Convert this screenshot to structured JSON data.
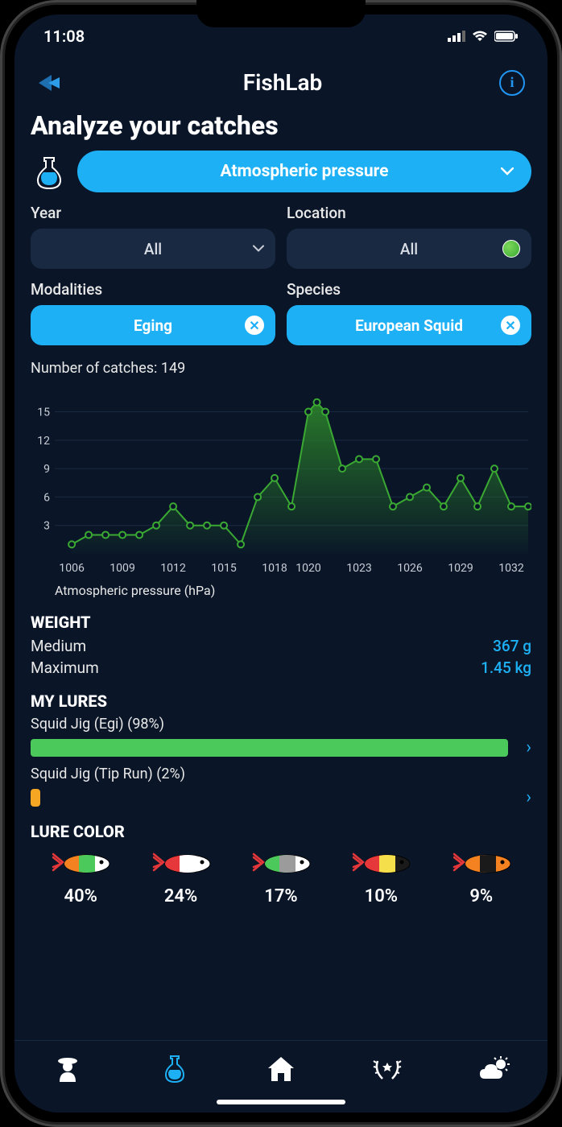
{
  "status": {
    "time": "11:08"
  },
  "header": {
    "title": "FishLab"
  },
  "page": {
    "title": "Analyze your catches"
  },
  "mainFilter": {
    "label": "Atmospheric pressure"
  },
  "filters": {
    "year": {
      "label": "Year",
      "value": "All"
    },
    "location": {
      "label": "Location",
      "value": "All"
    },
    "modalities": {
      "label": "Modalities",
      "value": "Eging"
    },
    "species": {
      "label": "Species",
      "value": "European Squid"
    }
  },
  "chart": {
    "type": "area-line",
    "titlePrefix": "Number of catches: ",
    "catchCount": "149",
    "xAxisLabel": "Atmospheric pressure (hPa)",
    "lineColor": "#3aa832",
    "markerColor": "#3aa832",
    "markerFill": "#0a1628",
    "fillTop": "#2d8a2a",
    "fillBottom": "rgba(45,138,42,0.05)",
    "gridColor": "#1a2942",
    "textColor": "#c8cdd6",
    "yTicks": [
      3,
      6,
      9,
      12,
      15
    ],
    "yMax": 17,
    "xTicks": [
      1006,
      1009,
      1012,
      1015,
      1018,
      1020,
      1023,
      1026,
      1029,
      1032
    ],
    "xMin": 1005,
    "xMax": 1033,
    "data": [
      {
        "x": 1006,
        "y": 1
      },
      {
        "x": 1007,
        "y": 2
      },
      {
        "x": 1008,
        "y": 2
      },
      {
        "x": 1009,
        "y": 2
      },
      {
        "x": 1010,
        "y": 2
      },
      {
        "x": 1011,
        "y": 3
      },
      {
        "x": 1012,
        "y": 5
      },
      {
        "x": 1013,
        "y": 3
      },
      {
        "x": 1014,
        "y": 3
      },
      {
        "x": 1015,
        "y": 3
      },
      {
        "x": 1016,
        "y": 1
      },
      {
        "x": 1017,
        "y": 6
      },
      {
        "x": 1018,
        "y": 8
      },
      {
        "x": 1019,
        "y": 5
      },
      {
        "x": 1020,
        "y": 15
      },
      {
        "x": 1020.5,
        "y": 16
      },
      {
        "x": 1021,
        "y": 15
      },
      {
        "x": 1022,
        "y": 9
      },
      {
        "x": 1023,
        "y": 10
      },
      {
        "x": 1024,
        "y": 10
      },
      {
        "x": 1025,
        "y": 5
      },
      {
        "x": 1026,
        "y": 6
      },
      {
        "x": 1027,
        "y": 7
      },
      {
        "x": 1028,
        "y": 5
      },
      {
        "x": 1029,
        "y": 8
      },
      {
        "x": 1030,
        "y": 5
      },
      {
        "x": 1031,
        "y": 9
      },
      {
        "x": 1032,
        "y": 5
      },
      {
        "x": 1033,
        "y": 5
      }
    ]
  },
  "weight": {
    "heading": "WEIGHT",
    "medium": {
      "label": "Medium",
      "value": "367 g"
    },
    "maximum": {
      "label": "Maximum",
      "value": "1.45 kg"
    }
  },
  "lures": {
    "heading": "MY LURES",
    "items": [
      {
        "label": "Squid Jig (Egi) (98%)",
        "pct": 98,
        "color": "#4bc95a"
      },
      {
        "label": "Squid Jig (Tip Run) (2%)",
        "pct": 2,
        "color": "#f5a623"
      }
    ]
  },
  "lureColor": {
    "heading": "LURE COLOR",
    "items": [
      {
        "pct": "40%",
        "segments": [
          "#f58220",
          "#4bc95a",
          "#ffffff"
        ]
      },
      {
        "pct": "24%",
        "segments": [
          "#e6373a",
          "#ffffff",
          "#ffffff"
        ]
      },
      {
        "pct": "17%",
        "segments": [
          "#4bc95a",
          "#9b9b9b",
          "#ffffff"
        ]
      },
      {
        "pct": "10%",
        "segments": [
          "#e6373a",
          "#f5e04b",
          "#1a1a1a"
        ]
      },
      {
        "pct": "9%",
        "segments": [
          "#f58220",
          "#1a1a1a",
          "#f58220"
        ]
      }
    ]
  },
  "colors": {
    "accent": "#1eb0f5",
    "bg": "#0a1628",
    "pillDark": "#1a2942"
  }
}
